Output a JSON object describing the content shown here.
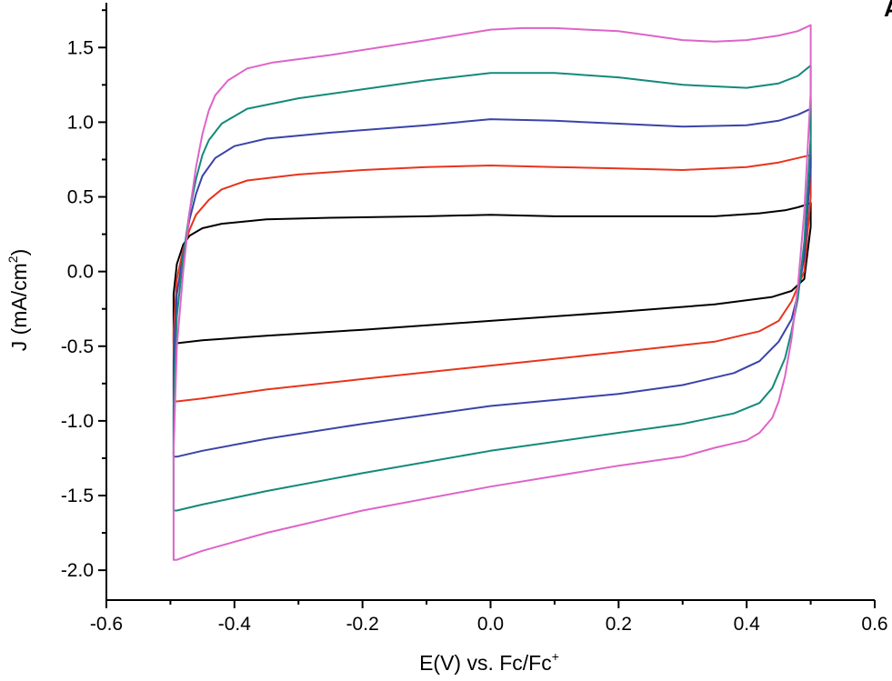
{
  "chart_data": {
    "type": "line",
    "xlabel_main": "E(V) vs. Fc/Fc",
    "xlabel_sup": "+",
    "ylabel_main": "J (mA/cm",
    "ylabel_sup": "2",
    "ylabel_end": ")",
    "corner_mark": "A",
    "xlim": [
      -0.6,
      0.6
    ],
    "ylim": [
      -2.2,
      1.8
    ],
    "x_ticks": [
      -0.6,
      -0.4,
      -0.2,
      0.0,
      0.2,
      0.4,
      0.6
    ],
    "x_tick_labels": [
      "-0.6",
      "-0.4",
      "-0.2",
      "0.0",
      "0.2",
      "0.4",
      "0.6"
    ],
    "y_ticks": [
      -2.0,
      -1.5,
      -1.0,
      -0.5,
      0.0,
      0.5,
      1.0,
      1.5
    ],
    "y_tick_labels": [
      "-2.0",
      "-1.5",
      "-1.0",
      "-0.5",
      "0.0",
      "0.5",
      "1.0",
      "1.5"
    ],
    "grid": false,
    "colors": {
      "black": "#000000",
      "red": "#e8341c",
      "blue": "#3a43a8",
      "teal": "#138a7a",
      "magenta": "#de64c8"
    },
    "series": [
      {
        "color": "#000000",
        "x": [
          -0.495,
          -0.495,
          -0.49,
          -0.48,
          -0.47,
          -0.45,
          -0.42,
          -0.35,
          -0.25,
          -0.1,
          0.0,
          0.1,
          0.25,
          0.35,
          0.42,
          0.46,
          0.48,
          0.495,
          0.5,
          0.5,
          0.49,
          0.47,
          0.44,
          0.35,
          0.2,
          0.0,
          -0.2,
          -0.35,
          -0.45,
          -0.49,
          -0.495,
          -0.495
        ],
        "y": [
          -0.4,
          -0.15,
          0.05,
          0.18,
          0.24,
          0.29,
          0.32,
          0.35,
          0.36,
          0.37,
          0.38,
          0.37,
          0.37,
          0.37,
          0.39,
          0.41,
          0.43,
          0.45,
          0.46,
          0.3,
          -0.05,
          -0.13,
          -0.17,
          -0.22,
          -0.27,
          -0.33,
          -0.39,
          -0.43,
          -0.46,
          -0.48,
          -0.48,
          -0.4
        ]
      },
      {
        "color": "#e8341c",
        "x": [
          -0.495,
          -0.495,
          -0.49,
          -0.48,
          -0.47,
          -0.46,
          -0.44,
          -0.42,
          -0.38,
          -0.3,
          -0.2,
          -0.1,
          0.0,
          0.1,
          0.2,
          0.3,
          0.4,
          0.45,
          0.48,
          0.5,
          0.5,
          0.49,
          0.47,
          0.45,
          0.42,
          0.35,
          0.2,
          0.0,
          -0.2,
          -0.35,
          -0.45,
          -0.49,
          -0.495,
          -0.495
        ],
        "y": [
          -0.8,
          -0.4,
          -0.05,
          0.15,
          0.28,
          0.38,
          0.48,
          0.55,
          0.61,
          0.65,
          0.68,
          0.7,
          0.71,
          0.7,
          0.69,
          0.68,
          0.7,
          0.73,
          0.76,
          0.78,
          0.5,
          0.0,
          -0.2,
          -0.33,
          -0.4,
          -0.47,
          -0.54,
          -0.63,
          -0.72,
          -0.79,
          -0.85,
          -0.87,
          -0.87,
          -0.8
        ]
      },
      {
        "color": "#3a43a8",
        "x": [
          -0.495,
          -0.495,
          -0.49,
          -0.48,
          -0.47,
          -0.46,
          -0.45,
          -0.43,
          -0.4,
          -0.35,
          -0.25,
          -0.1,
          0.0,
          0.1,
          0.2,
          0.3,
          0.4,
          0.45,
          0.48,
          0.5,
          0.5,
          0.49,
          0.48,
          0.47,
          0.45,
          0.42,
          0.38,
          0.3,
          0.2,
          0.0,
          -0.2,
          -0.35,
          -0.45,
          -0.49,
          -0.495,
          -0.495
        ],
        "y": [
          -1.2,
          -0.6,
          -0.15,
          0.12,
          0.35,
          0.52,
          0.64,
          0.76,
          0.84,
          0.89,
          0.93,
          0.98,
          1.02,
          1.01,
          0.99,
          0.97,
          0.98,
          1.01,
          1.05,
          1.09,
          0.7,
          0.1,
          -0.15,
          -0.32,
          -0.47,
          -0.6,
          -0.68,
          -0.76,
          -0.82,
          -0.9,
          -1.02,
          -1.12,
          -1.2,
          -1.24,
          -1.24,
          -1.2
        ]
      },
      {
        "color": "#138a7a",
        "x": [
          -0.495,
          -0.495,
          -0.49,
          -0.48,
          -0.47,
          -0.46,
          -0.45,
          -0.44,
          -0.42,
          -0.38,
          -0.3,
          -0.2,
          -0.1,
          0.0,
          0.1,
          0.2,
          0.3,
          0.4,
          0.45,
          0.48,
          0.5,
          0.5,
          0.49,
          0.48,
          0.47,
          0.46,
          0.44,
          0.42,
          0.38,
          0.3,
          0.2,
          0.0,
          -0.2,
          -0.35,
          -0.45,
          -0.49,
          -0.495,
          -0.495
        ],
        "y": [
          -1.6,
          -0.9,
          -0.3,
          0.1,
          0.4,
          0.62,
          0.78,
          0.88,
          0.99,
          1.09,
          1.16,
          1.22,
          1.28,
          1.33,
          1.33,
          1.3,
          1.25,
          1.23,
          1.26,
          1.31,
          1.38,
          0.9,
          0.2,
          -0.18,
          -0.4,
          -0.58,
          -0.78,
          -0.88,
          -0.95,
          -1.02,
          -1.08,
          -1.2,
          -1.35,
          -1.47,
          -1.56,
          -1.6,
          -1.6,
          -1.6
        ]
      },
      {
        "color": "#de64c8",
        "x": [
          -0.495,
          -0.495,
          -0.49,
          -0.48,
          -0.47,
          -0.46,
          -0.45,
          -0.44,
          -0.43,
          -0.41,
          -0.38,
          -0.34,
          -0.25,
          -0.1,
          0.0,
          0.05,
          0.1,
          0.15,
          0.2,
          0.25,
          0.3,
          0.35,
          0.4,
          0.45,
          0.48,
          0.5,
          0.5,
          0.49,
          0.48,
          0.47,
          0.46,
          0.45,
          0.44,
          0.42,
          0.4,
          0.35,
          0.3,
          0.2,
          0.0,
          -0.2,
          -0.35,
          -0.45,
          -0.49,
          -0.495,
          -0.495
        ],
        "y": [
          -1.9,
          -1.2,
          -0.5,
          0.0,
          0.4,
          0.7,
          0.92,
          1.08,
          1.18,
          1.28,
          1.36,
          1.4,
          1.45,
          1.55,
          1.62,
          1.63,
          1.63,
          1.62,
          1.61,
          1.58,
          1.55,
          1.54,
          1.55,
          1.58,
          1.61,
          1.65,
          1.2,
          0.4,
          -0.1,
          -0.45,
          -0.7,
          -0.87,
          -0.98,
          -1.08,
          -1.13,
          -1.18,
          -1.24,
          -1.3,
          -1.44,
          -1.6,
          -1.75,
          -1.87,
          -1.93,
          -1.93,
          -1.9
        ]
      }
    ]
  }
}
